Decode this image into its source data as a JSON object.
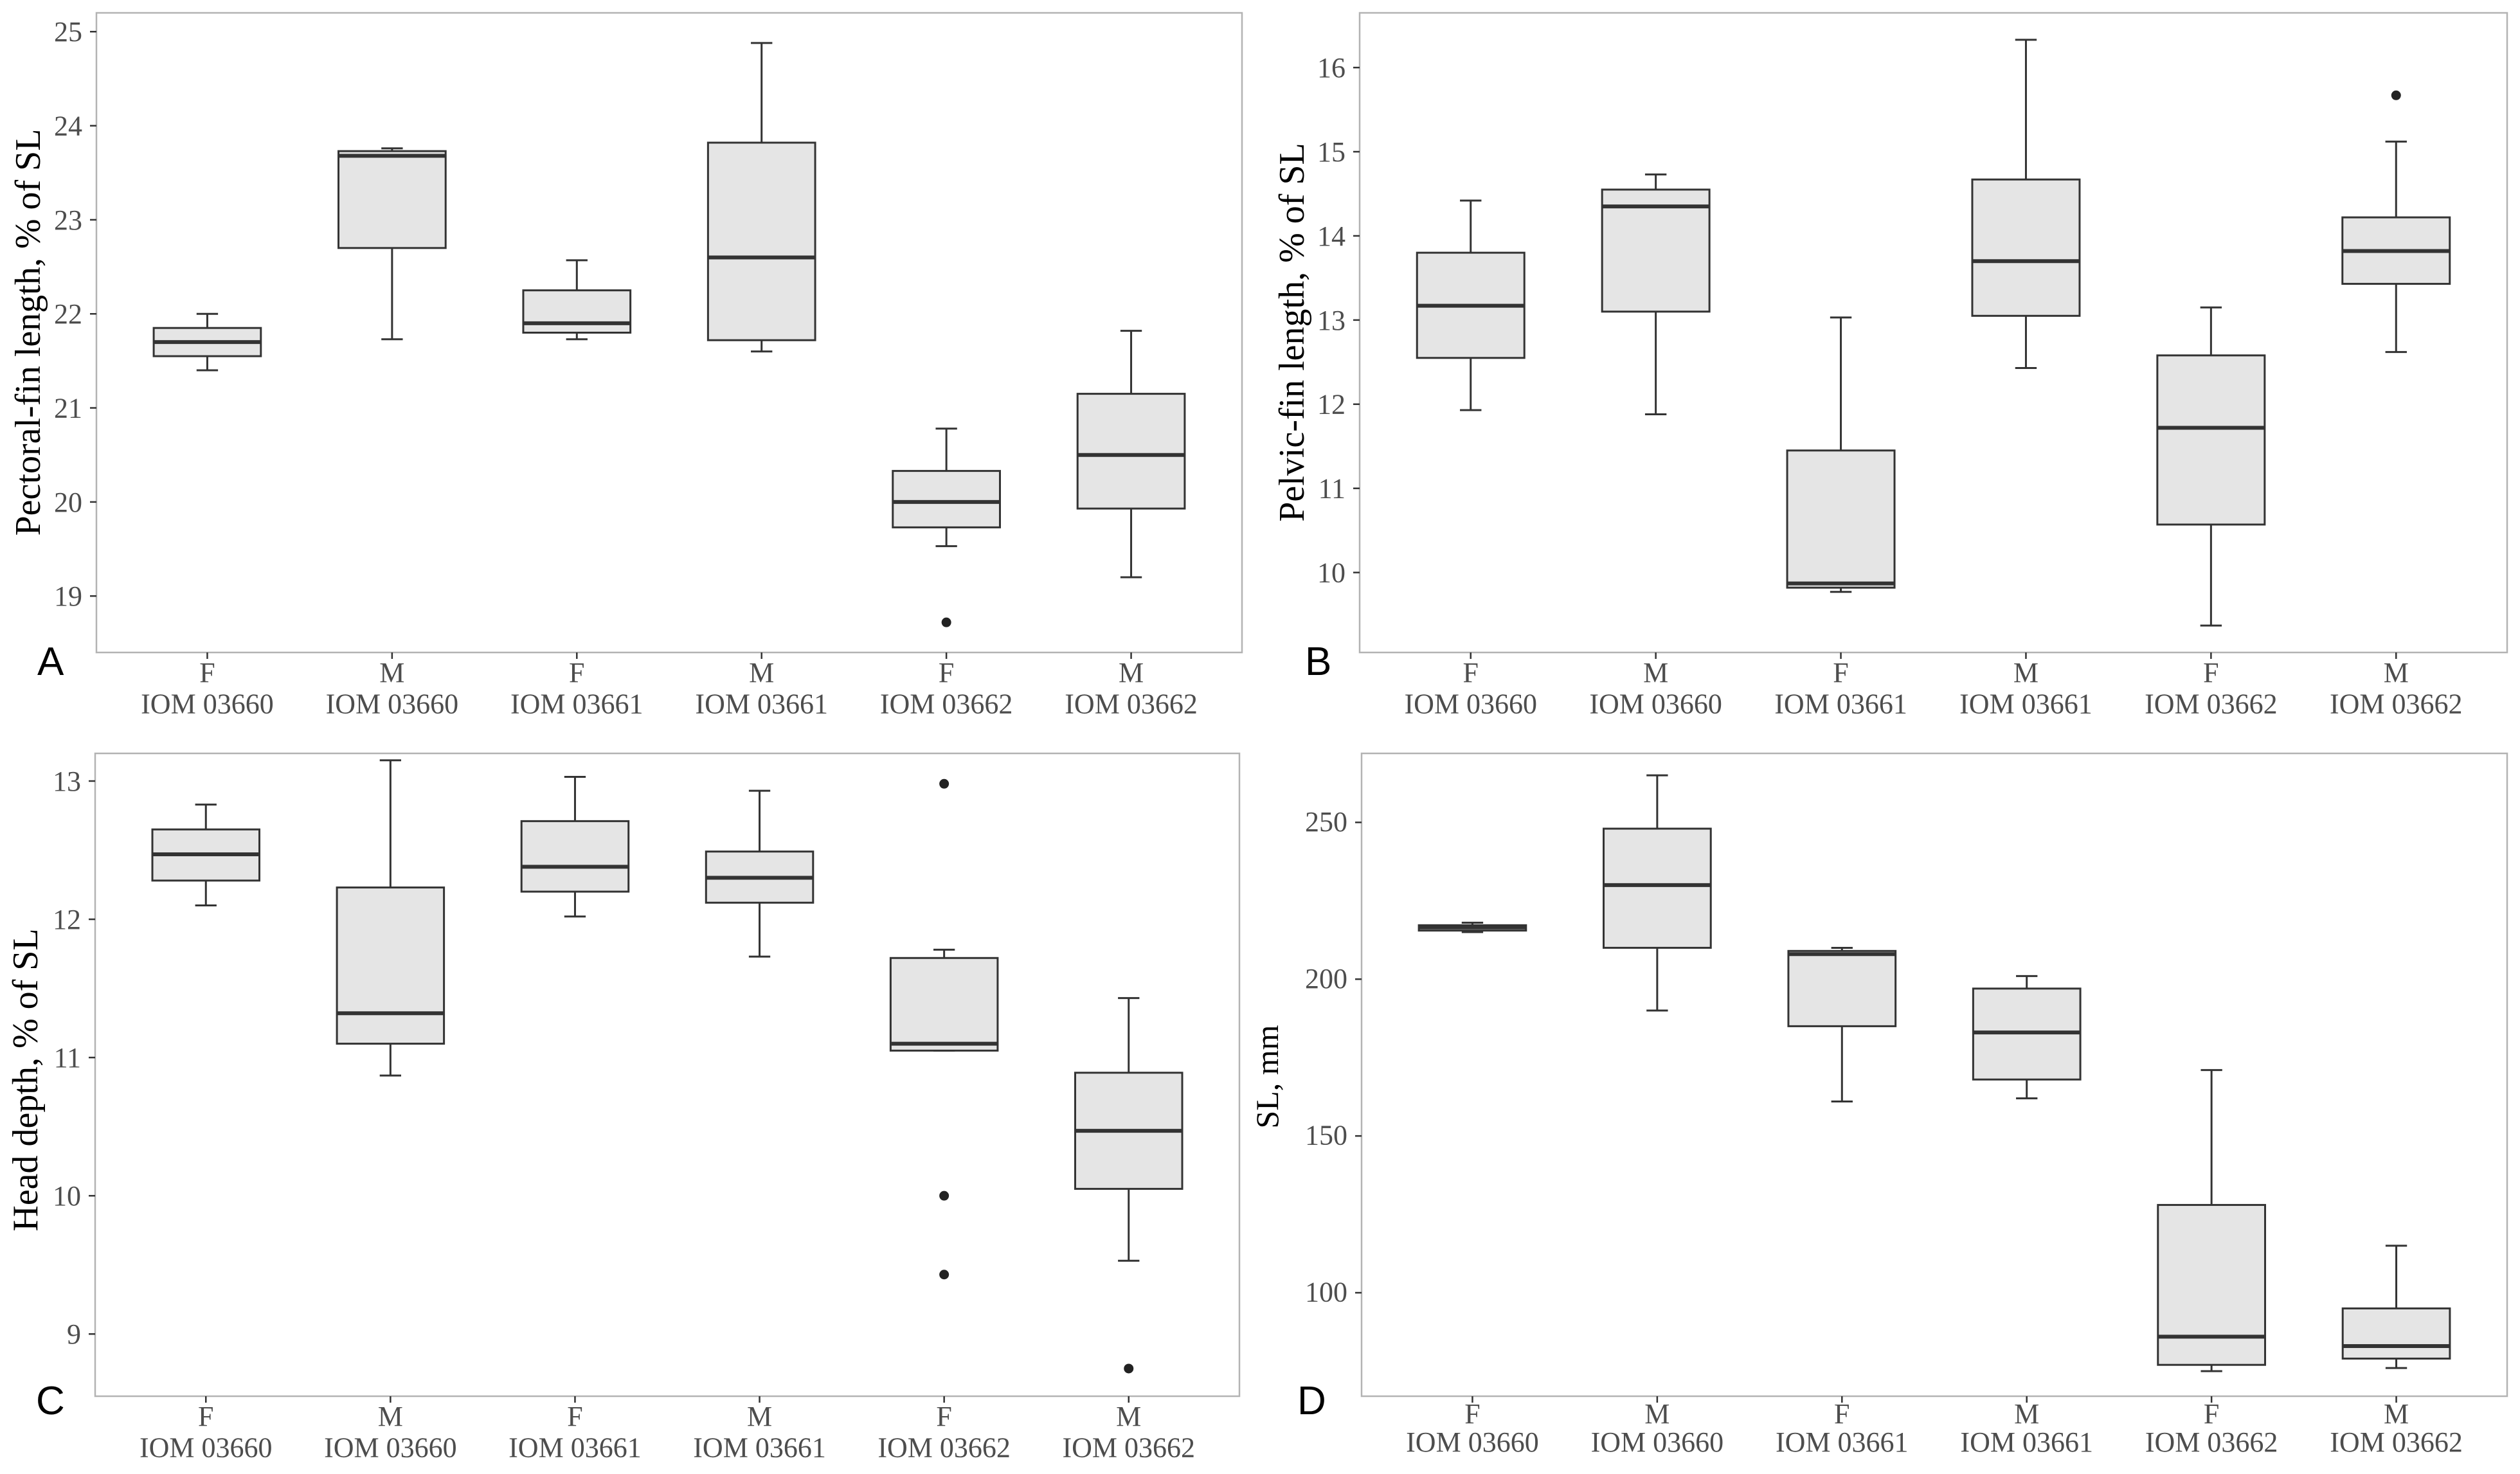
{
  "figure": {
    "colors": {
      "box_fill": "#e5e5e5",
      "box_stroke": "#333333",
      "panel_border": "#b3b3b3",
      "outlier": "#222222",
      "text": "#4d4d4d"
    }
  },
  "chart_data": [
    {
      "panel": "A",
      "type": "boxplot",
      "ylabel": "Pectoral-fin length, % of SL",
      "ylim": [
        18.4,
        25.2
      ],
      "yticks": [
        19,
        20,
        21,
        22,
        23,
        24,
        25
      ],
      "sex_labels": [
        "F",
        "M",
        "F",
        "M",
        "F",
        "M"
      ],
      "group_labels": [
        "IOM 03660",
        "IOM 03660",
        "IOM 03661",
        "IOM 03661",
        "IOM 03662",
        "IOM 03662"
      ],
      "boxes": [
        {
          "min": 21.4,
          "q1": 21.55,
          "median": 21.7,
          "q3": 21.85,
          "max": 22.0,
          "outliers": []
        },
        {
          "min": 21.73,
          "q1": 22.7,
          "median": 23.68,
          "q3": 23.73,
          "max": 23.76,
          "outliers": []
        },
        {
          "min": 21.73,
          "q1": 21.8,
          "median": 21.9,
          "q3": 22.25,
          "max": 22.57,
          "outliers": []
        },
        {
          "min": 21.6,
          "q1": 21.72,
          "median": 22.6,
          "q3": 23.82,
          "max": 24.88,
          "outliers": []
        },
        {
          "min": 19.53,
          "q1": 19.73,
          "median": 20.0,
          "q3": 20.33,
          "max": 20.78,
          "outliers": [
            18.72
          ]
        },
        {
          "min": 19.2,
          "q1": 19.93,
          "median": 20.5,
          "q3": 21.15,
          "max": 21.82,
          "outliers": []
        }
      ]
    },
    {
      "panel": "B",
      "type": "boxplot",
      "ylabel": "Pelvic-fin length, % of SL",
      "ylim": [
        9.05,
        16.65
      ],
      "yticks": [
        10,
        11,
        12,
        13,
        14,
        15,
        16
      ],
      "sex_labels": [
        "F",
        "M",
        "F",
        "M",
        "F",
        "M"
      ],
      "group_labels": [
        "IOM 03660",
        "IOM 03660",
        "IOM 03661",
        "IOM 03661",
        "IOM 03662",
        "IOM 03662"
      ],
      "boxes": [
        {
          "min": 11.93,
          "q1": 12.55,
          "median": 13.17,
          "q3": 13.8,
          "max": 14.42,
          "outliers": []
        },
        {
          "min": 11.88,
          "q1": 13.1,
          "median": 14.35,
          "q3": 14.55,
          "max": 14.73,
          "outliers": []
        },
        {
          "min": 9.77,
          "q1": 9.82,
          "median": 9.87,
          "q3": 11.45,
          "max": 13.03,
          "outliers": []
        },
        {
          "min": 12.43,
          "q1": 13.05,
          "median": 13.7,
          "q3": 14.67,
          "max": 16.33,
          "outliers": []
        },
        {
          "min": 9.37,
          "q1": 10.57,
          "median": 11.72,
          "q3": 12.58,
          "max": 13.15,
          "outliers": []
        },
        {
          "min": 12.62,
          "q1": 13.43,
          "median": 13.82,
          "q3": 14.22,
          "max": 15.12,
          "outliers": [
            15.67
          ]
        }
      ]
    },
    {
      "panel": "C",
      "type": "boxplot",
      "ylabel": "Head depth, % of SL",
      "ylim": [
        8.55,
        13.2
      ],
      "yticks": [
        9,
        10,
        11,
        12,
        13
      ],
      "sex_labels": [
        "F",
        "M",
        "F",
        "M",
        "F",
        "M"
      ],
      "group_labels": [
        "IOM 03660",
        "IOM 03660",
        "IOM 03661",
        "IOM 03661",
        "IOM 03662",
        "IOM 03662"
      ],
      "boxes": [
        {
          "min": 12.1,
          "q1": 12.28,
          "median": 12.47,
          "q3": 12.65,
          "max": 12.83,
          "outliers": []
        },
        {
          "min": 10.87,
          "q1": 11.1,
          "median": 11.32,
          "q3": 12.23,
          "max": 13.15,
          "outliers": []
        },
        {
          "min": 12.02,
          "q1": 12.2,
          "median": 12.38,
          "q3": 12.71,
          "max": 13.03,
          "outliers": []
        },
        {
          "min": 11.73,
          "q1": 12.12,
          "median": 12.3,
          "q3": 12.49,
          "max": 12.93,
          "outliers": []
        },
        {
          "min": 11.05,
          "q1": 11.05,
          "median": 11.1,
          "q3": 11.72,
          "max": 11.78,
          "outliers": [
            12.98,
            10.0,
            9.43
          ]
        },
        {
          "min": 9.53,
          "q1": 10.05,
          "median": 10.47,
          "q3": 10.89,
          "max": 11.43,
          "outliers": [
            8.75
          ]
        }
      ]
    },
    {
      "panel": "D",
      "type": "boxplot",
      "ylabel": "SL, mm",
      "ylim": [
        67,
        272
      ],
      "yticks": [
        100,
        150,
        200,
        250
      ],
      "sex_labels": [
        "F",
        "M",
        "F",
        "M",
        "F",
        "M"
      ],
      "group_labels": [
        "IOM 03660",
        "IOM 03660",
        "IOM 03661",
        "IOM 03661",
        "IOM 03662",
        "IOM 03662"
      ],
      "boxes": [
        {
          "min": 215,
          "q1": 215.5,
          "median": 216.5,
          "q3": 217.2,
          "max": 218,
          "outliers": []
        },
        {
          "min": 190,
          "q1": 210,
          "median": 230,
          "q3": 248,
          "max": 265,
          "outliers": []
        },
        {
          "min": 161,
          "q1": 185,
          "median": 208,
          "q3": 209,
          "max": 210,
          "outliers": []
        },
        {
          "min": 162,
          "q1": 168,
          "median": 183,
          "q3": 197,
          "max": 201,
          "outliers": []
        },
        {
          "min": 75,
          "q1": 77,
          "median": 86,
          "q3": 128,
          "max": 171,
          "outliers": []
        },
        {
          "min": 76,
          "q1": 79,
          "median": 83,
          "q3": 95,
          "max": 115,
          "outliers": []
        }
      ]
    }
  ]
}
